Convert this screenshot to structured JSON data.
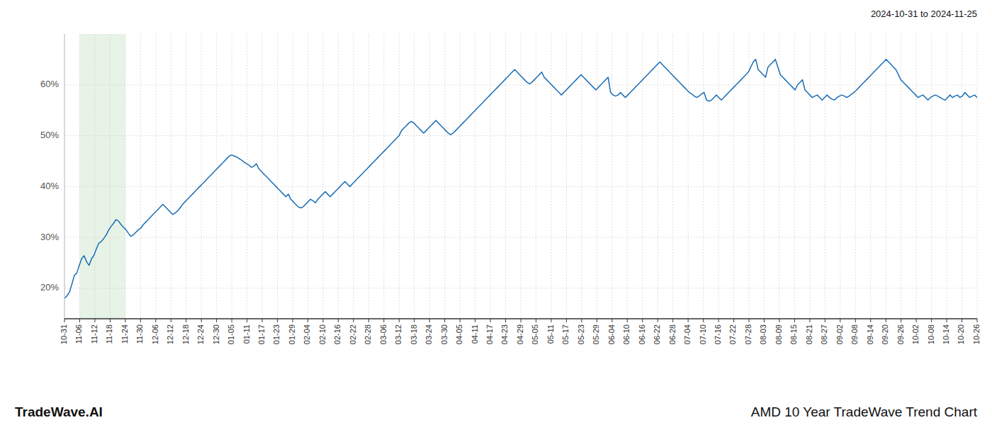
{
  "chart_data": {
    "type": "line",
    "title": "AMD 10 Year TradeWave Trend Chart",
    "annotations": [
      "TradeWave.AI",
      "2024-10-31 to 2024-11-25"
    ],
    "color": "#1a6db5",
    "grid": true,
    "xlim": [
      0,
      60
    ],
    "xticks": [
      {
        "value": 0,
        "label": "10-31"
      },
      {
        "value": 1,
        "label": "11-06"
      },
      {
        "value": 2,
        "label": "11-12"
      },
      {
        "value": 3,
        "label": "11-18"
      },
      {
        "value": 4,
        "label": "11-24"
      },
      {
        "value": 5,
        "label": "11-30"
      },
      {
        "value": 6,
        "label": "12-06"
      },
      {
        "value": 7,
        "label": "12-12"
      },
      {
        "value": 8,
        "label": "12-18"
      },
      {
        "value": 9,
        "label": "12-24"
      },
      {
        "value": 10,
        "label": "12-30"
      },
      {
        "value": 11,
        "label": "01-05"
      },
      {
        "value": 12,
        "label": "01-11"
      },
      {
        "value": 13,
        "label": "01-17"
      },
      {
        "value": 14,
        "label": "01-23"
      },
      {
        "value": 15,
        "label": "01-29"
      },
      {
        "value": 16,
        "label": "02-04"
      },
      {
        "value": 17,
        "label": "02-10"
      },
      {
        "value": 18,
        "label": "02-16"
      },
      {
        "value": 19,
        "label": "02-22"
      },
      {
        "value": 20,
        "label": "02-28"
      },
      {
        "value": 21,
        "label": "03-06"
      },
      {
        "value": 22,
        "label": "03-12"
      },
      {
        "value": 23,
        "label": "03-18"
      },
      {
        "value": 24,
        "label": "03-24"
      },
      {
        "value": 25,
        "label": "03-30"
      },
      {
        "value": 26,
        "label": "04-05"
      },
      {
        "value": 27,
        "label": "04-11"
      },
      {
        "value": 28,
        "label": "04-17"
      },
      {
        "value": 29,
        "label": "04-23"
      },
      {
        "value": 30,
        "label": "04-29"
      },
      {
        "value": 31,
        "label": "05-05"
      },
      {
        "value": 32,
        "label": "05-11"
      },
      {
        "value": 33,
        "label": "05-17"
      },
      {
        "value": 34,
        "label": "05-23"
      },
      {
        "value": 35,
        "label": "05-29"
      },
      {
        "value": 36,
        "label": "06-04"
      },
      {
        "value": 37,
        "label": "06-10"
      },
      {
        "value": 38,
        "label": "06-16"
      },
      {
        "value": 39,
        "label": "06-22"
      },
      {
        "value": 40,
        "label": "06-28"
      },
      {
        "value": 41,
        "label": "07-04"
      },
      {
        "value": 42,
        "label": "07-10"
      },
      {
        "value": 43,
        "label": "07-16"
      },
      {
        "value": 44,
        "label": "07-22"
      },
      {
        "value": 45,
        "label": "07-28"
      },
      {
        "value": 46,
        "label": "08-03"
      },
      {
        "value": 47,
        "label": "08-09"
      },
      {
        "value": 48,
        "label": "08-15"
      },
      {
        "value": 49,
        "label": "08-21"
      },
      {
        "value": 50,
        "label": "08-27"
      },
      {
        "value": 51,
        "label": "09-02"
      },
      {
        "value": 52,
        "label": "09-08"
      },
      {
        "value": 53,
        "label": "09-14"
      },
      {
        "value": 54,
        "label": "09-20"
      },
      {
        "value": 55,
        "label": "09-26"
      },
      {
        "value": 56,
        "label": "10-02"
      },
      {
        "value": 57,
        "label": "10-08"
      },
      {
        "value": 58,
        "label": "10-14"
      },
      {
        "value": 59,
        "label": "10-20"
      },
      {
        "value": 60,
        "label": "10-26"
      }
    ],
    "highlight_range": [
      1,
      4
    ],
    "ylim": [
      14,
      70
    ],
    "yticks": [
      {
        "value": 20,
        "label": "20%"
      },
      {
        "value": 30,
        "label": "30%"
      },
      {
        "value": 40,
        "label": "40%"
      },
      {
        "value": 50,
        "label": "50%"
      },
      {
        "value": 60,
        "label": "60%"
      }
    ],
    "values": [
      18.0,
      18.5,
      19.2,
      20.8,
      22.5,
      23.0,
      24.5,
      25.8,
      26.4,
      25.2,
      24.5,
      25.8,
      26.5,
      27.8,
      28.9,
      29.2,
      29.8,
      30.5,
      31.5,
      32.2,
      32.8,
      33.5,
      33.2,
      32.5,
      32.0,
      31.5,
      30.8,
      30.2,
      30.5,
      31.0,
      31.5,
      31.8,
      32.5,
      33.0,
      33.5,
      34.0,
      34.5,
      35.0,
      35.5,
      36.0,
      36.5,
      36.0,
      35.5,
      35.0,
      34.5,
      34.8,
      35.2,
      35.8,
      36.5,
      37.0,
      37.5,
      38.0,
      38.5,
      39.0,
      39.5,
      40.0,
      40.5,
      41.0,
      41.5,
      42.0,
      42.5,
      43.0,
      43.5,
      44.0,
      44.5,
      45.0,
      45.5,
      46.0,
      46.2,
      46.0,
      45.8,
      45.5,
      45.2,
      44.8,
      44.5,
      44.2,
      43.8,
      44.0,
      44.5,
      43.5,
      43.0,
      42.5,
      42.0,
      41.5,
      41.0,
      40.5,
      40.0,
      39.5,
      39.0,
      38.5,
      38.0,
      38.5,
      37.5,
      37.0,
      36.5,
      36.0,
      35.8,
      36.0,
      36.5,
      37.0,
      37.5,
      37.2,
      36.8,
      37.5,
      38.0,
      38.5,
      39.0,
      38.5,
      38.0,
      38.5,
      39.0,
      39.5,
      40.0,
      40.5,
      41.0,
      40.5,
      40.0,
      40.5,
      41.0,
      41.5,
      42.0,
      42.5,
      43.0,
      43.5,
      44.0,
      44.5,
      45.0,
      45.5,
      46.0,
      46.5,
      47.0,
      47.5,
      48.0,
      48.5,
      49.0,
      49.5,
      50.0,
      51.0,
      51.5,
      52.0,
      52.5,
      52.8,
      52.5,
      52.0,
      51.5,
      51.0,
      50.5,
      51.0,
      51.5,
      52.0,
      52.5,
      53.0,
      52.5,
      52.0,
      51.5,
      51.0,
      50.5,
      50.2,
      50.5,
      51.0,
      51.5,
      52.0,
      52.5,
      53.0,
      53.5,
      54.0,
      54.5,
      55.0,
      55.5,
      56.0,
      56.5,
      57.0,
      57.5,
      58.0,
      58.5,
      59.0,
      59.5,
      60.0,
      60.5,
      61.0,
      61.5,
      62.0,
      62.5,
      63.0,
      62.5,
      62.0,
      61.5,
      61.0,
      60.5,
      60.2,
      60.5,
      61.0,
      61.5,
      62.0,
      62.5,
      61.5,
      61.0,
      60.5,
      60.0,
      59.5,
      59.0,
      58.5,
      58.0,
      58.5,
      59.0,
      59.5,
      60.0,
      60.5,
      61.0,
      61.5,
      62.0,
      61.5,
      61.0,
      60.5,
      60.0,
      59.5,
      59.0,
      59.5,
      60.0,
      60.5,
      61.0,
      61.5,
      58.5,
      58.0,
      57.8,
      58.0,
      58.5,
      58.0,
      57.5,
      58.0,
      58.5,
      59.0,
      59.5,
      60.0,
      60.5,
      61.0,
      61.5,
      62.0,
      62.5,
      63.0,
      63.5,
      64.0,
      64.5,
      64.0,
      63.5,
      63.0,
      62.5,
      62.0,
      61.5,
      61.0,
      60.5,
      60.0,
      59.5,
      59.0,
      58.5,
      58.2,
      57.8,
      57.5,
      57.8,
      58.2,
      58.5,
      57.0,
      56.8,
      57.0,
      57.5,
      58.0,
      57.5,
      57.0,
      57.5,
      58.0,
      58.5,
      59.0,
      59.5,
      60.0,
      60.5,
      61.0,
      61.5,
      62.0,
      62.5,
      63.5,
      64.5,
      65.0,
      63.0,
      62.5,
      62.0,
      61.5,
      63.5,
      64.0,
      64.5,
      65.0,
      63.5,
      62.0,
      61.5,
      61.0,
      60.5,
      60.0,
      59.5,
      59.0,
      60.0,
      60.5,
      61.0,
      59.0,
      58.5,
      58.0,
      57.5,
      57.8,
      58.0,
      57.5,
      57.0,
      57.5,
      58.0,
      57.5,
      57.2,
      57.0,
      57.5,
      57.8,
      58.0,
      57.8,
      57.5,
      57.8,
      58.2,
      58.5,
      59.0,
      59.5,
      60.0,
      60.5,
      61.0,
      61.5,
      62.0,
      62.5,
      63.0,
      63.5,
      64.0,
      64.5,
      65.0,
      64.5,
      64.0,
      63.5,
      63.0,
      62.0,
      61.0,
      60.5,
      60.0,
      59.5,
      59.0,
      58.5,
      58.0,
      57.5,
      57.8,
      58.0,
      57.5,
      57.0,
      57.5,
      57.8,
      58.0,
      57.8,
      57.5,
      57.2,
      57.0,
      57.5,
      58.0,
      57.5,
      57.8,
      58.0,
      57.5,
      57.8,
      58.5,
      58.0,
      57.5,
      57.8,
      58.0,
      57.5
    ]
  }
}
